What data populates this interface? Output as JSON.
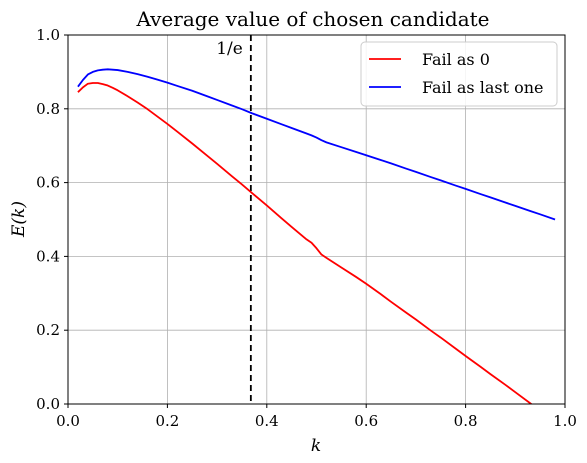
{
  "chart_data": {
    "type": "line",
    "title": "Average value of chosen candidate",
    "xlabel": "k",
    "ylabel": "E(k)",
    "xlim": [
      0.0,
      1.0
    ],
    "ylim": [
      0.0,
      1.0
    ],
    "xticks": [
      "0.0",
      "0.2",
      "0.4",
      "0.6",
      "0.8",
      "1.0"
    ],
    "yticks": [
      "0.0",
      "0.2",
      "0.4",
      "0.6",
      "0.8",
      "1.0"
    ],
    "grid": true,
    "legend_position": "top-right",
    "annotation": {
      "x": 0.3679,
      "label": "1/e",
      "style": "dashed",
      "color": "#000000"
    },
    "series": [
      {
        "name": "Fail as 0",
        "color": "#ff0000",
        "x": [
          0.02,
          0.03,
          0.04,
          0.05,
          0.06,
          0.07,
          0.08,
          0.09,
          0.1,
          0.12,
          0.14,
          0.16,
          0.18,
          0.2,
          0.22,
          0.25,
          0.28,
          0.3,
          0.33,
          0.35,
          0.37,
          0.4,
          0.43,
          0.45,
          0.48,
          0.49,
          0.5,
          0.51,
          0.52,
          0.55,
          0.58,
          0.6,
          0.63,
          0.65,
          0.68,
          0.7,
          0.73,
          0.75,
          0.78,
          0.8,
          0.83,
          0.85,
          0.88,
          0.9,
          0.93,
          0.95,
          0.98
        ],
        "y": [
          0.845,
          0.858,
          0.868,
          0.87,
          0.87,
          0.867,
          0.863,
          0.857,
          0.85,
          0.834,
          0.817,
          0.799,
          0.779,
          0.759,
          0.738,
          0.706,
          0.673,
          0.651,
          0.617,
          0.595,
          0.572,
          0.538,
          0.503,
          0.48,
          0.446,
          0.437,
          0.422,
          0.405,
          0.396,
          0.37,
          0.344,
          0.326,
          0.297,
          0.277,
          0.248,
          0.229,
          0.199,
          0.18,
          0.15,
          0.13,
          0.101,
          0.081,
          0.052,
          0.032,
          0.002,
          -0.018,
          -0.048
        ]
      },
      {
        "name": "Fail as last one",
        "color": "#0000ff",
        "x": [
          0.02,
          0.03,
          0.04,
          0.05,
          0.06,
          0.07,
          0.08,
          0.09,
          0.1,
          0.12,
          0.14,
          0.16,
          0.18,
          0.2,
          0.22,
          0.25,
          0.28,
          0.3,
          0.33,
          0.35,
          0.37,
          0.4,
          0.43,
          0.45,
          0.48,
          0.49,
          0.5,
          0.51,
          0.52,
          0.55,
          0.58,
          0.6,
          0.63,
          0.65,
          0.68,
          0.7,
          0.73,
          0.75,
          0.78,
          0.8,
          0.83,
          0.85,
          0.88,
          0.9,
          0.93,
          0.95,
          0.98
        ],
        "y": [
          0.86,
          0.878,
          0.893,
          0.9,
          0.904,
          0.906,
          0.907,
          0.906,
          0.905,
          0.9,
          0.894,
          0.887,
          0.879,
          0.871,
          0.862,
          0.849,
          0.834,
          0.824,
          0.809,
          0.799,
          0.788,
          0.773,
          0.758,
          0.748,
          0.733,
          0.728,
          0.722,
          0.715,
          0.709,
          0.696,
          0.683,
          0.674,
          0.661,
          0.652,
          0.638,
          0.629,
          0.615,
          0.606,
          0.592,
          0.583,
          0.569,
          0.56,
          0.546,
          0.537,
          0.523,
          0.514,
          0.5
        ]
      }
    ]
  }
}
